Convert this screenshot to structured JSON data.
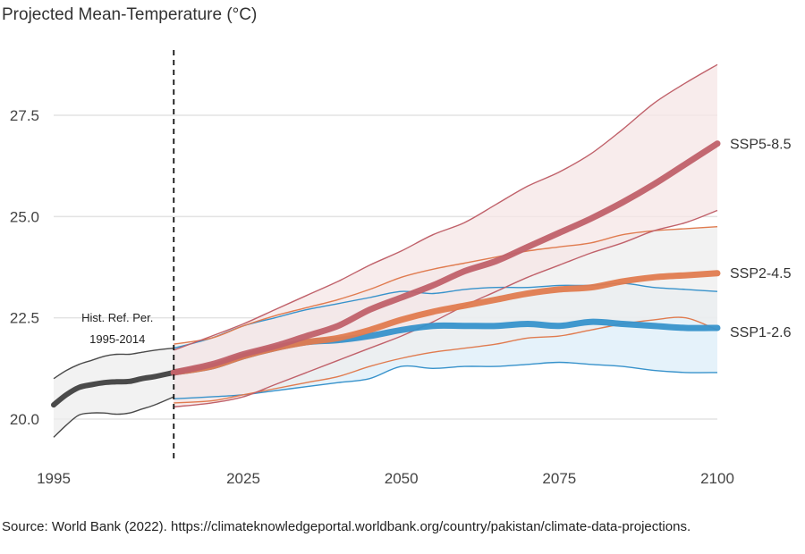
{
  "title": "Projected Mean-Temperature (°C)",
  "source": "Source: World Bank (2022). https://climateknowledgeportal.worldbank.org/country/pakistan/climate-data-projections.",
  "chart_data": {
    "type": "line",
    "title": "Projected Mean-Temperature (°C)",
    "xlabel": "",
    "ylabel": "",
    "xlim": [
      1995,
      2100
    ],
    "ylim": [
      19.4,
      28.8
    ],
    "x_ticks": [
      1995,
      2025,
      2050,
      2075,
      2100
    ],
    "y_ticks": [
      20.0,
      22.5,
      25.0,
      27.5
    ],
    "y_tick_labels": [
      "20.0",
      "22.5",
      "25.0",
      "27.5"
    ],
    "grid": true,
    "reference_period": {
      "x": 2014,
      "label_line1": "Hist. Ref. Per.",
      "label_line2": "1995-2014"
    },
    "historical": {
      "color": "#4a4a4a",
      "band_fill": "#eeeeee",
      "x": [
        1995,
        1997,
        1999,
        2001,
        2003,
        2005,
        2007,
        2009,
        2011,
        2014
      ],
      "mean": [
        20.35,
        20.6,
        20.78,
        20.85,
        20.9,
        20.92,
        20.93,
        21.0,
        21.05,
        21.15
      ],
      "upper": [
        21.0,
        21.2,
        21.35,
        21.45,
        21.55,
        21.6,
        21.6,
        21.65,
        21.7,
        21.75
      ],
      "lower": [
        19.55,
        19.85,
        20.1,
        20.15,
        20.15,
        20.12,
        20.15,
        20.25,
        20.35,
        20.55
      ]
    },
    "series": [
      {
        "name": "SSP1-2.6",
        "color": "#3792cb",
        "band_fill": "#dcedf8",
        "x": [
          2014,
          2020,
          2025,
          2030,
          2035,
          2040,
          2045,
          2050,
          2055,
          2060,
          2065,
          2070,
          2075,
          2080,
          2085,
          2090,
          2095,
          2100
        ],
        "mean": [
          21.15,
          21.3,
          21.55,
          21.75,
          21.9,
          21.95,
          22.05,
          22.2,
          22.3,
          22.3,
          22.3,
          22.35,
          22.3,
          22.4,
          22.35,
          22.3,
          22.25,
          22.25
        ],
        "upper": [
          21.75,
          22.0,
          22.3,
          22.5,
          22.7,
          22.85,
          23.0,
          23.15,
          23.1,
          23.2,
          23.25,
          23.25,
          23.3,
          23.3,
          23.35,
          23.25,
          23.2,
          23.15
        ],
        "lower": [
          20.5,
          20.55,
          20.6,
          20.7,
          20.8,
          20.9,
          21.0,
          21.3,
          21.25,
          21.3,
          21.3,
          21.35,
          21.4,
          21.35,
          21.3,
          21.2,
          21.15,
          21.15
        ]
      },
      {
        "name": "SSP2-4.5",
        "color": "#e07b4f",
        "band_fill": "#ededed",
        "x": [
          2014,
          2020,
          2025,
          2030,
          2035,
          2040,
          2045,
          2050,
          2055,
          2060,
          2065,
          2070,
          2075,
          2080,
          2085,
          2090,
          2095,
          2100
        ],
        "mean": [
          21.15,
          21.3,
          21.55,
          21.75,
          21.9,
          22.0,
          22.2,
          22.45,
          22.65,
          22.8,
          22.95,
          23.1,
          23.2,
          23.25,
          23.4,
          23.5,
          23.55,
          23.6
        ],
        "upper": [
          21.85,
          22.0,
          22.3,
          22.55,
          22.75,
          22.95,
          23.2,
          23.5,
          23.7,
          23.85,
          24.0,
          24.15,
          24.25,
          24.35,
          24.55,
          24.65,
          24.7,
          24.75
        ],
        "lower": [
          20.4,
          20.45,
          20.6,
          20.75,
          20.9,
          21.05,
          21.3,
          21.5,
          21.65,
          21.75,
          21.85,
          22.0,
          22.05,
          22.2,
          22.35,
          22.45,
          22.5,
          22.2
        ]
      },
      {
        "name": "SSP5-8.5",
        "color": "#c0616a",
        "band_fill": "#f6e6e6",
        "x": [
          2014,
          2020,
          2025,
          2030,
          2035,
          2040,
          2045,
          2050,
          2055,
          2060,
          2065,
          2070,
          2075,
          2080,
          2085,
          2090,
          2095,
          2100
        ],
        "mean": [
          21.15,
          21.35,
          21.6,
          21.8,
          22.05,
          22.3,
          22.7,
          23.0,
          23.3,
          23.65,
          23.9,
          24.25,
          24.6,
          24.95,
          25.35,
          25.8,
          26.3,
          26.8
        ],
        "upper": [
          21.7,
          22.05,
          22.35,
          22.7,
          23.05,
          23.4,
          23.8,
          24.15,
          24.55,
          24.85,
          25.3,
          25.75,
          26.1,
          26.55,
          27.15,
          27.8,
          28.3,
          28.75
        ],
        "lower": [
          20.3,
          20.4,
          20.55,
          20.85,
          21.15,
          21.45,
          21.75,
          22.05,
          22.4,
          22.8,
          23.15,
          23.5,
          23.8,
          24.1,
          24.35,
          24.65,
          24.85,
          25.15
        ]
      }
    ]
  }
}
